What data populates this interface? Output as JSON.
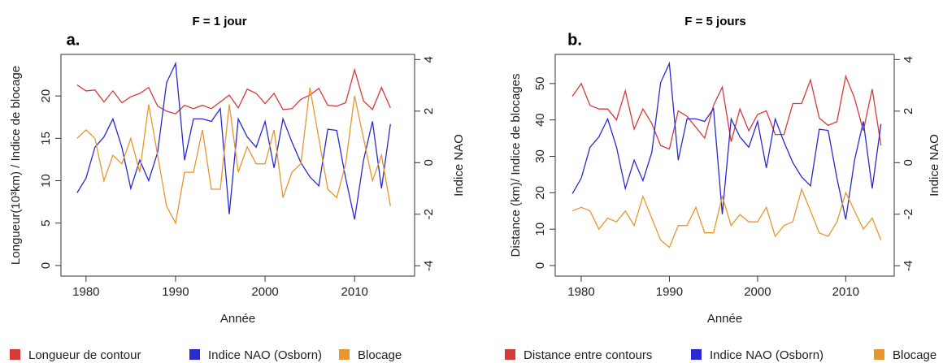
{
  "chart_data": [
    {
      "type": "line",
      "title": "F = 1 jour",
      "panel_label": "a.",
      "x_label": "Année",
      "y_label": "Longueur(10³km) / Indice de blocage",
      "y2_label": "Indice NAO",
      "x": [
        1979,
        1980,
        1981,
        1982,
        1983,
        1984,
        1985,
        1986,
        1987,
        1988,
        1989,
        1990,
        1991,
        1992,
        1993,
        1994,
        1995,
        1996,
        1997,
        1998,
        1999,
        2000,
        2001,
        2002,
        2003,
        2004,
        2005,
        2006,
        2007,
        2008,
        2009,
        2010,
        2011,
        2012,
        2013,
        2014
      ],
      "xlim": [
        1977.2,
        2016.7
      ],
      "xticks": [
        1980,
        1990,
        2000,
        2010
      ],
      "ylim": [
        -1.25,
        24.9
      ],
      "yticks": [
        0,
        5,
        10,
        15,
        20
      ],
      "y2lim": [
        -4.4,
        4.2
      ],
      "y2ticks": [
        -4,
        -2,
        0,
        2,
        4
      ],
      "series": [
        {
          "name": "Longueur de contour",
          "color": "#d83a3a",
          "values": [
            21.3,
            20.6,
            20.7,
            19.3,
            20.6,
            19.2,
            19.9,
            20.3,
            21,
            18.8,
            18.2,
            17.9,
            18.9,
            18.5,
            18.9,
            18.5,
            19.3,
            20.1,
            18.6,
            20.8,
            20.3,
            19.1,
            20.3,
            18.4,
            18.5,
            19.6,
            20.1,
            20.9,
            18.9,
            18.8,
            19.2,
            23.1,
            19.4,
            18.4,
            21,
            18.6
          ]
        },
        {
          "name": "Indice NAO (Osborn)",
          "color": "#2a2ad0",
          "axis": "y2",
          "values": [
            -1.17,
            -0.6,
            0.6,
            1.0,
            1.7,
            0.6,
            -1.0,
            0.1,
            -0.7,
            0.4,
            3.1,
            3.85,
            0.1,
            1.7,
            1.7,
            1.6,
            2.1,
            -2.0,
            1.7,
            1.0,
            0.6,
            1.6,
            -0.2,
            1.7,
            0.8,
            0,
            -0.55,
            -0.9,
            1.3,
            1.25,
            -0.6,
            -2.2,
            0.1,
            1.6,
            -1.0,
            1.5
          ]
        },
        {
          "name": "Blocage",
          "color": "#e8962e",
          "values": [
            15,
            16,
            15,
            10,
            13,
            12,
            15,
            11,
            19,
            13,
            7,
            5,
            11,
            11,
            16,
            9,
            9,
            19,
            11,
            14,
            12,
            12,
            16,
            8,
            11,
            12,
            21,
            15,
            9,
            8,
            12,
            20,
            15,
            10,
            13,
            7
          ]
        }
      ]
    },
    {
      "type": "line",
      "title": "F = 5 jours",
      "panel_label": "b.",
      "x_label": "Année",
      "y_label": "Distance (km)/ Indice de blocages",
      "y2_label": "Indice NAO",
      "x": [
        1979,
        1980,
        1981,
        1982,
        1983,
        1984,
        1985,
        1986,
        1987,
        1988,
        1989,
        1990,
        1991,
        1992,
        1993,
        1994,
        1995,
        1996,
        1997,
        1998,
        1999,
        2000,
        2001,
        2002,
        2003,
        2004,
        2005,
        2006,
        2007,
        2008,
        2009,
        2010,
        2011,
        2012,
        2013,
        2014
      ],
      "xlim": [
        1977.05,
        2015.5
      ],
      "xticks": [
        1980,
        1990,
        2000,
        2010
      ],
      "ylim": [
        -2.9,
        58
      ],
      "yticks": [
        0,
        10,
        20,
        30,
        40,
        50
      ],
      "y2lim": [
        -4.4,
        4.2
      ],
      "y2ticks": [
        -4,
        -2,
        0,
        2,
        4
      ],
      "series": [
        {
          "name": "Distance entre contours",
          "color": "#d83a3a",
          "values": [
            46.5,
            50,
            44,
            43,
            43,
            40,
            48,
            37.5,
            43,
            39,
            33,
            32,
            42.5,
            41,
            38,
            35,
            44,
            49,
            34,
            43,
            37,
            41.5,
            42.5,
            36,
            36,
            44.5,
            44.5,
            51,
            40.5,
            38.5,
            39.5,
            52,
            46,
            37,
            48.5,
            33
          ]
        },
        {
          "name": "Indice NAO (Osborn)",
          "color": "#2a2ad0",
          "axis": "y2",
          "values": [
            -1.2,
            -0.6,
            0.6,
            1.0,
            1.7,
            0.6,
            -1.0,
            0.1,
            -0.7,
            0.4,
            3.1,
            3.85,
            0.1,
            1.7,
            1.7,
            1.6,
            2.1,
            -2.0,
            1.7,
            1.0,
            0.6,
            1.6,
            -0.2,
            1.7,
            0.8,
            0,
            -0.55,
            -0.9,
            1.3,
            1.25,
            -0.6,
            -2.2,
            0.1,
            1.6,
            -1.0,
            1.5
          ]
        },
        {
          "name": "Blocage",
          "color": "#e8962e",
          "values": [
            15,
            16,
            15,
            10,
            13,
            12,
            15,
            11,
            19,
            13,
            7,
            5,
            11,
            11,
            16,
            9,
            9,
            19,
            11,
            14,
            12,
            12,
            16,
            8,
            11,
            12,
            21,
            15,
            9,
            8,
            12,
            20,
            15,
            10,
            13,
            7
          ]
        }
      ]
    }
  ]
}
